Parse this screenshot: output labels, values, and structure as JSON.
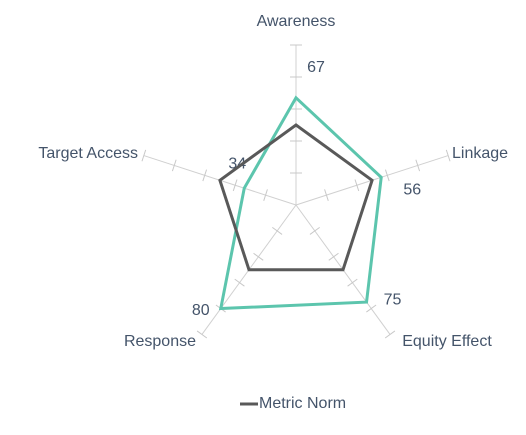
{
  "chart_data": {
    "type": "radar",
    "categories": [
      "Awareness",
      "Linkage",
      "Equity Effect",
      "Response",
      "Target Access"
    ],
    "series": [
      {
        "color": "#5cc5ad",
        "values": [
          67,
          56,
          75,
          80,
          34
        ],
        "data_labels": true
      },
      {
        "name": "Metric Norm",
        "color": "#595959",
        "values": [
          50,
          50,
          50,
          50,
          50
        ]
      }
    ],
    "rlim": [
      0,
      100
    ],
    "rticks": [
      0,
      20,
      40,
      60,
      80,
      100
    ],
    "legend": "bottom"
  }
}
